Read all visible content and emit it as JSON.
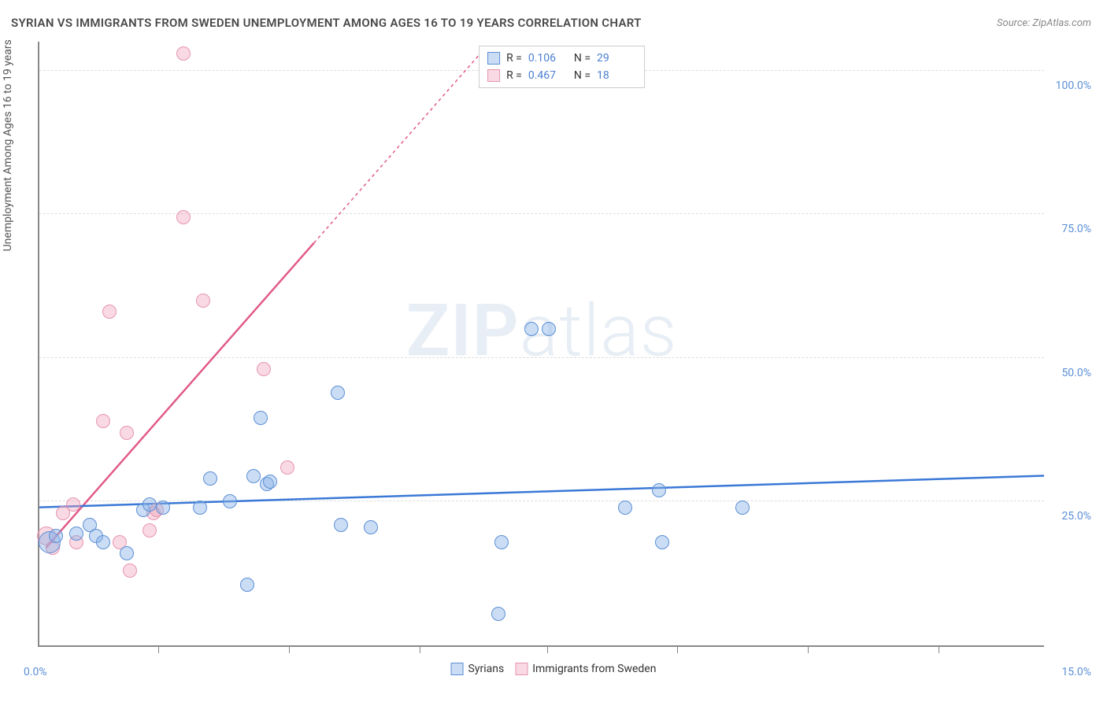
{
  "title": "SYRIAN VS IMMIGRANTS FROM SWEDEN UNEMPLOYMENT AMONG AGES 16 TO 19 YEARS CORRELATION CHART",
  "source": "Source: ZipAtlas.com",
  "y_axis_label": "Unemployment Among Ages 16 to 19 years",
  "watermark_bold": "ZIP",
  "watermark_light": "atlas",
  "chart": {
    "type": "scatter",
    "xlim": [
      0,
      15
    ],
    "ylim": [
      0,
      105
    ],
    "x_min_label": "0.0%",
    "x_max_label": "15.0%",
    "x_ticks": [
      1.8,
      3.75,
      5.7,
      7.6,
      9.55,
      11.5,
      13.45
    ],
    "y_gridlines": [
      {
        "value": 25,
        "label": "25.0%"
      },
      {
        "value": 50,
        "label": "50.0%"
      },
      {
        "value": 75,
        "label": "75.0%"
      },
      {
        "value": 100,
        "label": "100.0%"
      }
    ],
    "background_color": "#ffffff",
    "grid_color": "#dddddd",
    "axis_color": "#888888"
  },
  "series": [
    {
      "name": "Syrians",
      "marker_fill": "rgba(140,180,230,0.45)",
      "marker_stroke": "#5b8fd6",
      "marker_radius": 9,
      "trend_color": "#3a78d6",
      "trend_width": 2.5,
      "trend_start": {
        "x": 0,
        "y": 24
      },
      "trend_end": {
        "x": 15,
        "y": 29.5
      },
      "r_value": "0.106",
      "n_value": "29",
      "points": [
        {
          "x": 0.15,
          "y": 18,
          "r": 14
        },
        {
          "x": 0.25,
          "y": 19
        },
        {
          "x": 0.55,
          "y": 19.5
        },
        {
          "x": 0.75,
          "y": 21
        },
        {
          "x": 0.85,
          "y": 19
        },
        {
          "x": 0.95,
          "y": 18
        },
        {
          "x": 1.3,
          "y": 16
        },
        {
          "x": 1.55,
          "y": 23.5
        },
        {
          "x": 1.65,
          "y": 24.5
        },
        {
          "x": 1.85,
          "y": 24
        },
        {
          "x": 2.4,
          "y": 24
        },
        {
          "x": 2.55,
          "y": 29
        },
        {
          "x": 2.85,
          "y": 25
        },
        {
          "x": 3.1,
          "y": 10.5
        },
        {
          "x": 3.2,
          "y": 29.5
        },
        {
          "x": 3.3,
          "y": 39.5
        },
        {
          "x": 3.4,
          "y": 28
        },
        {
          "x": 3.45,
          "y": 28.5
        },
        {
          "x": 4.45,
          "y": 44
        },
        {
          "x": 4.5,
          "y": 21
        },
        {
          "x": 4.95,
          "y": 20.5
        },
        {
          "x": 6.85,
          "y": 5.5
        },
        {
          "x": 6.9,
          "y": 18
        },
        {
          "x": 7.35,
          "y": 55
        },
        {
          "x": 7.6,
          "y": 55
        },
        {
          "x": 8.75,
          "y": 24
        },
        {
          "x": 9.25,
          "y": 27
        },
        {
          "x": 9.3,
          "y": 18
        },
        {
          "x": 10.5,
          "y": 24
        }
      ]
    },
    {
      "name": "Immigrants from Sweden",
      "marker_fill": "rgba(240,160,185,0.40)",
      "marker_stroke": "#e695b0",
      "marker_radius": 9,
      "trend_color": "#e15a8a",
      "trend_width": 2.5,
      "trend_start": {
        "x": 0.1,
        "y": 17
      },
      "trend_end_solid": {
        "x": 4.1,
        "y": 70
      },
      "trend_end_dashed": {
        "x": 6.55,
        "y": 102.5
      },
      "r_value": "0.467",
      "n_value": "18",
      "points": [
        {
          "x": 0.1,
          "y": 19,
          "r": 12
        },
        {
          "x": 0.2,
          "y": 17
        },
        {
          "x": 0.35,
          "y": 23
        },
        {
          "x": 0.5,
          "y": 24.5
        },
        {
          "x": 0.55,
          "y": 18
        },
        {
          "x": 0.95,
          "y": 39
        },
        {
          "x": 1.05,
          "y": 58
        },
        {
          "x": 1.2,
          "y": 18
        },
        {
          "x": 1.3,
          "y": 37
        },
        {
          "x": 1.35,
          "y": 13
        },
        {
          "x": 1.65,
          "y": 20
        },
        {
          "x": 1.7,
          "y": 23
        },
        {
          "x": 1.75,
          "y": 23.5
        },
        {
          "x": 2.15,
          "y": 74.5
        },
        {
          "x": 2.15,
          "y": 103
        },
        {
          "x": 2.45,
          "y": 60
        },
        {
          "x": 3.35,
          "y": 48
        },
        {
          "x": 3.7,
          "y": 31
        }
      ]
    }
  ],
  "legend_top_labels": {
    "r": "R =",
    "n": "N ="
  },
  "legend_bottom": [
    "Syrians",
    "Immigrants from Sweden"
  ]
}
